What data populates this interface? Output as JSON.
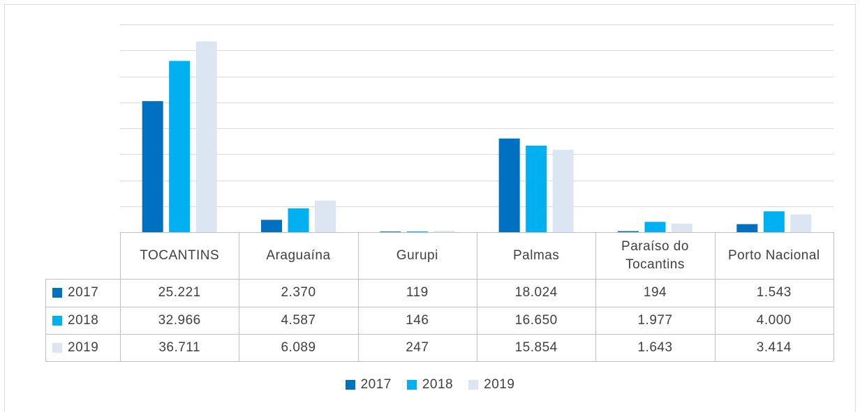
{
  "chart_data": {
    "type": "bar",
    "categories": [
      "TOCANTINS",
      "Araguaína",
      "Gurupi",
      "Palmas",
      "Paraíso do Tocantins",
      "Porto Nacional"
    ],
    "series": [
      {
        "name": "2017",
        "color": "#0070c0",
        "values": [
          25221,
          2370,
          119,
          18024,
          194,
          1543
        ],
        "value_labels": [
          "25.221",
          "2.370",
          "119",
          "18.024",
          "194",
          "1.543"
        ]
      },
      {
        "name": "2018",
        "color": "#00b0f0",
        "values": [
          32966,
          4587,
          146,
          16650,
          1977,
          4000
        ],
        "value_labels": [
          "32.966",
          "4.587",
          "146",
          "16.650",
          "1.977",
          "4.000"
        ]
      },
      {
        "name": "2019",
        "color": "#dce6f2",
        "values": [
          36711,
          6089,
          247,
          15854,
          1643,
          3414
        ],
        "value_labels": [
          "36.711",
          "6.089",
          "247",
          "15.854",
          "1.643",
          "3.414"
        ]
      }
    ],
    "ylim": [
      0,
      40000
    ],
    "yticks": [
      0,
      5000,
      10000,
      15000,
      20000,
      25000,
      30000,
      35000,
      40000
    ],
    "grid": true,
    "legend": "bottom",
    "data_table": true
  }
}
